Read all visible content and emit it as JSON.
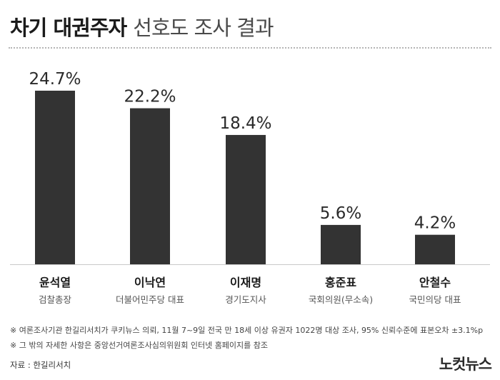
{
  "title": {
    "bold": "차기 대권주자",
    "light": "선호도 조사 결과"
  },
  "chart_data": {
    "type": "bar",
    "categories": [
      "윤석열",
      "이낙연",
      "이재명",
      "홍준표",
      "안철수"
    ],
    "roles": [
      "검찰총장",
      "더불어민주당 대표",
      "경기도지사",
      "국회의원(무소속)",
      "국민의당 대표"
    ],
    "values": [
      24.7,
      22.2,
      18.4,
      5.6,
      4.2
    ],
    "value_labels": [
      "24.7%",
      "22.2%",
      "18.4%",
      "5.6%",
      "4.2%"
    ],
    "ylim": [
      0,
      25
    ],
    "colors": {
      "bar": "#333333",
      "axis": "#c8c8c8"
    },
    "title": "차기 대권주자 선호도 조사 결과"
  },
  "notes": [
    "※ 여론조사기관 한길리서치가 쿠키뉴스 의뢰, 11월 7~9일 전국 만 18세 이상 유권자 1022명 대상 조사, 95% 신뢰수준에 표본오차 ±3.1%p",
    "※ 그 밖의 자세한 사항은 중앙선거여론조사심의위원회 인터넷 홈페이지를 참조"
  ],
  "source": "자료 : 한길리서치",
  "logo": "노컷뉴스"
}
